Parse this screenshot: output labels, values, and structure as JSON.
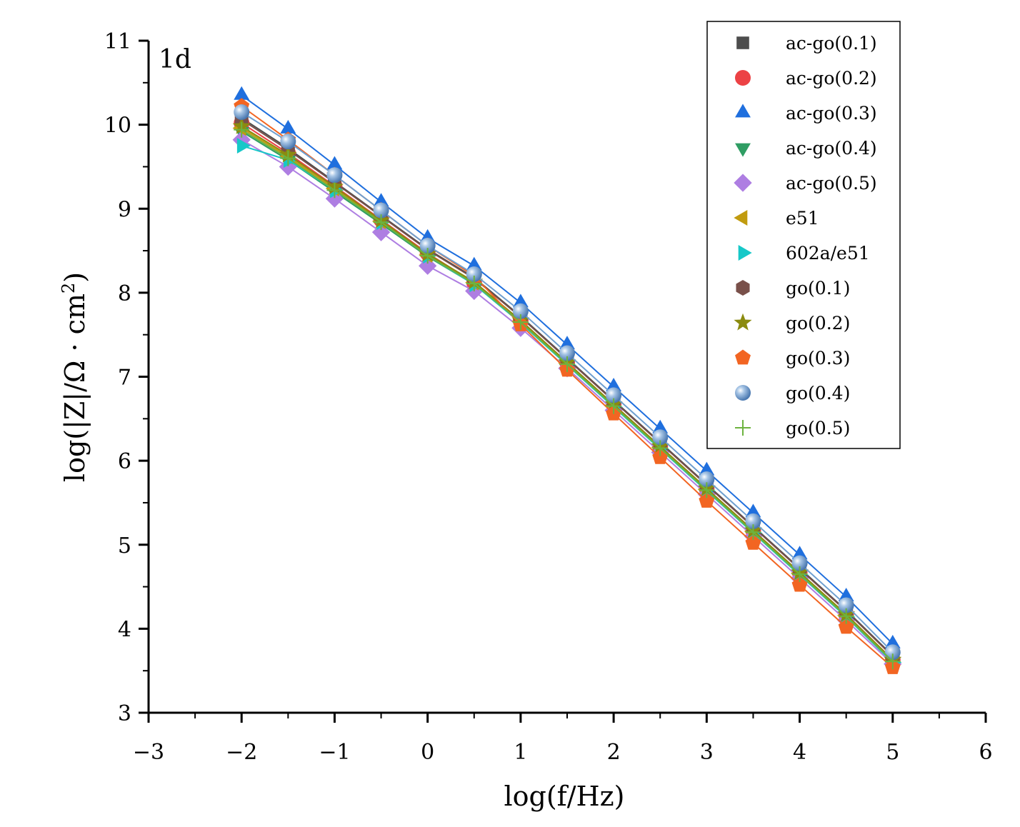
{
  "chart_data": {
    "type": "scatter",
    "panel_label": "1d",
    "xlabel": "log(f/Hz)",
    "ylabel_main": "log(|Z|/Ω · cm",
    "ylabel_sup": "2",
    "ylabel_close": ")",
    "xlim": [
      -3,
      6
    ],
    "ylim": [
      3,
      11
    ],
    "xticks": [
      -3,
      -2,
      -1,
      0,
      1,
      2,
      3,
      4,
      5,
      6
    ],
    "xtick_labels": [
      "−3",
      "−2",
      "−1",
      "0",
      "1",
      "2",
      "3",
      "4",
      "5",
      "6"
    ],
    "yticks": [
      3,
      4,
      5,
      6,
      7,
      8,
      9,
      10,
      11
    ],
    "ytick_labels": [
      "3",
      "4",
      "5",
      "6",
      "7",
      "8",
      "9",
      "10",
      "11"
    ],
    "grid": false,
    "legend_position": "top-right",
    "x": [
      -2.0,
      -1.5,
      -1.0,
      -0.5,
      0.0,
      0.5,
      1.0,
      1.5,
      2.0,
      2.5,
      3.0,
      3.5,
      4.0,
      4.5,
      5.0
    ],
    "series": [
      {
        "name": "ac-go(0.1)",
        "marker": "square",
        "color": "#4d4d4d",
        "values": [
          10.08,
          9.72,
          9.32,
          8.92,
          8.52,
          8.18,
          7.72,
          7.22,
          6.72,
          6.22,
          5.72,
          5.22,
          4.72,
          4.22,
          3.68
        ]
      },
      {
        "name": "ac-go(0.2)",
        "marker": "circle",
        "color": "#ec4245",
        "values": [
          10.02,
          9.66,
          9.27,
          8.87,
          8.47,
          8.12,
          7.67,
          7.17,
          6.67,
          6.17,
          5.67,
          5.17,
          4.67,
          4.17,
          3.63
        ]
      },
      {
        "name": "ac-go(0.3)",
        "marker": "triangle-up",
        "color": "#1f6fde",
        "values": [
          10.35,
          9.95,
          9.52,
          9.08,
          8.65,
          8.32,
          7.88,
          7.38,
          6.88,
          6.38,
          5.88,
          5.38,
          4.88,
          4.38,
          3.82
        ]
      },
      {
        "name": "ac-go(0.4)",
        "marker": "triangle-down",
        "color": "#2f9d63",
        "values": [
          9.92,
          9.58,
          9.2,
          8.82,
          8.43,
          8.1,
          7.64,
          7.14,
          6.64,
          6.14,
          5.64,
          5.14,
          4.64,
          4.14,
          3.6
        ]
      },
      {
        "name": "ac-go(0.5)",
        "marker": "diamond",
        "color": "#ae7ee2",
        "values": [
          9.82,
          9.5,
          9.12,
          8.72,
          8.32,
          8.02,
          7.58,
          7.1,
          6.6,
          6.1,
          5.6,
          5.1,
          4.6,
          4.1,
          3.58
        ]
      },
      {
        "name": "e51",
        "marker": "triangle-left",
        "color": "#c19b0f",
        "values": [
          9.96,
          9.62,
          9.24,
          8.85,
          8.45,
          8.12,
          7.66,
          7.16,
          6.66,
          6.16,
          5.66,
          5.16,
          4.66,
          4.16,
          3.62
        ]
      },
      {
        "name": "602a/e51",
        "marker": "triangle-right",
        "color": "#16c8c8",
        "values": [
          9.75,
          9.58,
          9.22,
          8.84,
          8.44,
          8.1,
          7.64,
          7.14,
          6.64,
          6.14,
          5.64,
          5.14,
          4.64,
          4.14,
          3.6
        ]
      },
      {
        "name": "go(0.1)",
        "marker": "hexagon",
        "color": "#79504a",
        "values": [
          10.06,
          9.7,
          9.31,
          8.91,
          8.51,
          8.17,
          7.71,
          7.21,
          6.71,
          6.21,
          5.71,
          5.21,
          4.71,
          4.21,
          3.67
        ]
      },
      {
        "name": "go(0.2)",
        "marker": "star",
        "color": "#8b8b0f",
        "values": [
          9.98,
          9.64,
          9.26,
          8.86,
          8.46,
          8.13,
          7.67,
          7.17,
          6.67,
          6.17,
          5.67,
          5.17,
          4.67,
          4.17,
          3.63
        ]
      },
      {
        "name": "go(0.3)",
        "marker": "pentagon",
        "color": "#f26522",
        "values": [
          10.22,
          9.82,
          9.4,
          8.98,
          8.56,
          8.2,
          7.62,
          7.08,
          6.56,
          6.04,
          5.52,
          5.02,
          4.52,
          4.02,
          3.54
        ]
      },
      {
        "name": "go(0.4)",
        "marker": "sphere",
        "color": "#6e9fd0",
        "values": [
          10.15,
          9.8,
          9.4,
          8.98,
          8.56,
          8.22,
          7.78,
          7.28,
          6.78,
          6.28,
          5.78,
          5.28,
          4.78,
          4.28,
          3.72
        ]
      },
      {
        "name": "go(0.5)",
        "marker": "plus",
        "color": "#6db33f",
        "values": [
          9.94,
          9.6,
          9.22,
          8.84,
          8.44,
          8.11,
          7.65,
          7.15,
          6.65,
          6.15,
          5.65,
          5.15,
          4.65,
          4.15,
          3.61
        ]
      }
    ]
  }
}
